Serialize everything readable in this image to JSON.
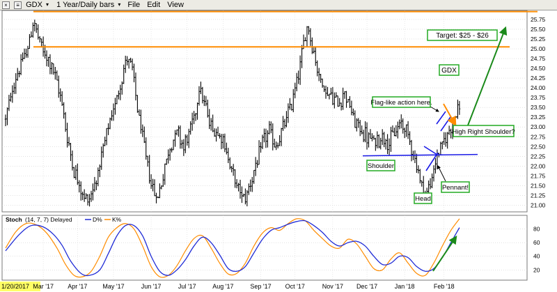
{
  "toolbar": {
    "symbol": "GDX",
    "period": "1 Year/Daily bars",
    "menu": [
      "File",
      "Edit",
      "View"
    ]
  },
  "colors": {
    "price_bars": "#000000",
    "resistance": "#ff8c00",
    "neckline": "#1a1ae6",
    "green_arrow": "#1a8a1a",
    "d_line": "#1f2bd6",
    "k_line": "#ff8c00",
    "label_border": "#22aa22"
  },
  "chart_data": [
    {
      "type": "ohlc",
      "panel": "price",
      "y_ticks": [
        21.0,
        21.25,
        21.5,
        21.75,
        22.0,
        22.25,
        22.5,
        22.75,
        23.0,
        23.25,
        23.5,
        23.75,
        24.0,
        24.25,
        24.5,
        24.75,
        25.0,
        25.25,
        25.5,
        25.75
      ],
      "ylim": [
        20.83,
        25.98
      ],
      "grid": true,
      "x_ticks": [
        "1/20/2017",
        "Mar '17",
        "Apr '17",
        "May '17",
        "Jun '17",
        "Jul '17",
        "Aug '17",
        "Sep '17",
        "Oct '17",
        "Nov '17",
        "Dec '17",
        "Jan '18",
        "Feb '18"
      ],
      "price_path": [
        [
          0,
          23.2
        ],
        [
          6,
          24.3
        ],
        [
          13,
          25.0
        ],
        [
          16,
          25.7
        ],
        [
          22,
          24.9
        ],
        [
          27,
          24.6
        ],
        [
          33,
          23.6
        ],
        [
          36,
          22.7
        ],
        [
          40,
          21.9
        ],
        [
          45,
          21.3
        ],
        [
          48,
          21.1
        ],
        [
          51,
          21.4
        ],
        [
          55,
          22.0
        ],
        [
          59,
          22.8
        ],
        [
          64,
          23.6
        ],
        [
          68,
          24.3
        ],
        [
          71,
          24.8
        ],
        [
          74,
          24.4
        ],
        [
          78,
          23.2
        ],
        [
          82,
          22.2
        ],
        [
          86,
          21.4
        ],
        [
          89,
          21.2
        ],
        [
          92,
          21.8
        ],
        [
          96,
          22.5
        ],
        [
          100,
          22.9
        ],
        [
          104,
          22.5
        ],
        [
          107,
          22.8
        ],
        [
          111,
          23.4
        ],
        [
          113,
          24.1
        ],
        [
          116,
          23.6
        ],
        [
          120,
          23.0
        ],
        [
          123,
          22.9
        ],
        [
          126,
          22.8
        ],
        [
          130,
          22.2
        ],
        [
          134,
          21.6
        ],
        [
          137,
          21.3
        ],
        [
          140,
          21.2
        ],
        [
          143,
          21.6
        ],
        [
          147,
          22.1
        ],
        [
          150,
          22.6
        ],
        [
          154,
          22.9
        ],
        [
          157,
          22.5
        ],
        [
          160,
          22.7
        ],
        [
          163,
          23.1
        ],
        [
          167,
          23.6
        ],
        [
          170,
          24.2
        ],
        [
          172,
          24.6
        ],
        [
          174,
          25.1
        ],
        [
          176,
          25.6
        ],
        [
          178,
          25.3
        ],
        [
          180,
          24.9
        ],
        [
          183,
          24.3
        ],
        [
          187,
          23.9
        ],
        [
          190,
          23.8
        ],
        [
          194,
          23.6
        ],
        [
          198,
          23.9
        ],
        [
          201,
          23.5
        ],
        [
          204,
          23.1
        ],
        [
          208,
          22.9
        ],
        [
          212,
          22.7
        ],
        [
          216,
          22.6
        ],
        [
          220,
          22.8
        ],
        [
          224,
          22.6
        ],
        [
          228,
          22.9
        ],
        [
          231,
          23.1
        ],
        [
          234,
          22.9
        ],
        [
          237,
          22.5
        ],
        [
          240,
          22.0
        ],
        [
          243,
          21.5
        ],
        [
          246,
          21.3
        ],
        [
          249,
          21.7
        ],
        [
          251,
          22.1
        ],
        [
          253,
          22.4
        ],
        [
          256,
          22.6
        ],
        [
          259,
          22.9
        ],
        [
          261,
          23.2
        ],
        [
          263,
          23.4
        ],
        [
          265,
          23.5
        ]
      ],
      "resistance_lines": [
        25.05,
        25.95
      ],
      "neckline": 22.28,
      "annotations": [
        "Target: $25 - $26",
        "GDX",
        "Flag-like action here.",
        "High Right Shoulder?",
        "Shoulder",
        "Pennant!",
        "Head"
      ]
    },
    {
      "type": "line",
      "panel": "stochastic",
      "title": "Stoch",
      "params": "(14, 7, 7) Delayed",
      "ylim": [
        5,
        100
      ],
      "y_ticks": [
        20,
        40,
        60,
        80
      ],
      "grid": true,
      "series": [
        {
          "name": "D%",
          "color": "#1f2bd6",
          "path": [
            [
              0,
              48
            ],
            [
              8,
              72
            ],
            [
              15,
              85
            ],
            [
              22,
              83
            ],
            [
              28,
              72
            ],
            [
              33,
              56
            ],
            [
              38,
              33
            ],
            [
              44,
              15
            ],
            [
              49,
              12
            ],
            [
              55,
              20
            ],
            [
              60,
              44
            ],
            [
              65,
              70
            ],
            [
              70,
              85
            ],
            [
              75,
              85
            ],
            [
              80,
              70
            ],
            [
              85,
              40
            ],
            [
              90,
              18
            ],
            [
              95,
              12
            ],
            [
              100,
              20
            ],
            [
              105,
              35
            ],
            [
              110,
              55
            ],
            [
              115,
              68
            ],
            [
              120,
              60
            ],
            [
              125,
              42
            ],
            [
              130,
              22
            ],
            [
              135,
              18
            ],
            [
              140,
              25
            ],
            [
              145,
              45
            ],
            [
              150,
              65
            ],
            [
              155,
              78
            ],
            [
              160,
              82
            ],
            [
              165,
              87
            ],
            [
              170,
              91
            ],
            [
              175,
              92
            ],
            [
              180,
              85
            ],
            [
              185,
              75
            ],
            [
              190,
              62
            ],
            [
              195,
              55
            ],
            [
              200,
              60
            ],
            [
              205,
              62
            ],
            [
              210,
              55
            ],
            [
              215,
              40
            ],
            [
              220,
              28
            ],
            [
              225,
              30
            ],
            [
              230,
              40
            ],
            [
              235,
              38
            ],
            [
              240,
              25
            ],
            [
              245,
              18
            ],
            [
              250,
              22
            ],
            [
              255,
              38
            ],
            [
              260,
              60
            ],
            [
              265,
              82
            ]
          ]
        },
        {
          "name": "K%",
          "color": "#ff8c00",
          "path": [
            [
              0,
              52
            ],
            [
              6,
              76
            ],
            [
              12,
              88
            ],
            [
              18,
              86
            ],
            [
              24,
              74
            ],
            [
              30,
              52
            ],
            [
              35,
              28
            ],
            [
              40,
              12
            ],
            [
              45,
              10
            ],
            [
              50,
              18
            ],
            [
              55,
              40
            ],
            [
              60,
              68
            ],
            [
              65,
              82
            ],
            [
              70,
              88
            ],
            [
              75,
              80
            ],
            [
              80,
              55
            ],
            [
              85,
              25
            ],
            [
              90,
              10
            ],
            [
              95,
              12
            ],
            [
              100,
              26
            ],
            [
              105,
              48
            ],
            [
              110,
              66
            ],
            [
              115,
              70
            ],
            [
              120,
              52
            ],
            [
              125,
              30
            ],
            [
              130,
              14
            ],
            [
              135,
              15
            ],
            [
              140,
              30
            ],
            [
              145,
              55
            ],
            [
              150,
              74
            ],
            [
              155,
              82
            ],
            [
              160,
              78
            ],
            [
              165,
              88
            ],
            [
              170,
              95
            ],
            [
              175,
              92
            ],
            [
              180,
              78
            ],
            [
              185,
              66
            ],
            [
              190,
              55
            ],
            [
              195,
              52
            ],
            [
              200,
              65
            ],
            [
              205,
              58
            ],
            [
              210,
              40
            ],
            [
              215,
              22
            ],
            [
              220,
              20
            ],
            [
              225,
              36
            ],
            [
              230,
              45
            ],
            [
              235,
              30
            ],
            [
              240,
              15
            ],
            [
              245,
              12
            ],
            [
              250,
              30
            ],
            [
              255,
              55
            ],
            [
              260,
              78
            ],
            [
              265,
              95
            ]
          ]
        }
      ],
      "legend": [
        "D%",
        "K%"
      ],
      "arrow": "up"
    }
  ]
}
